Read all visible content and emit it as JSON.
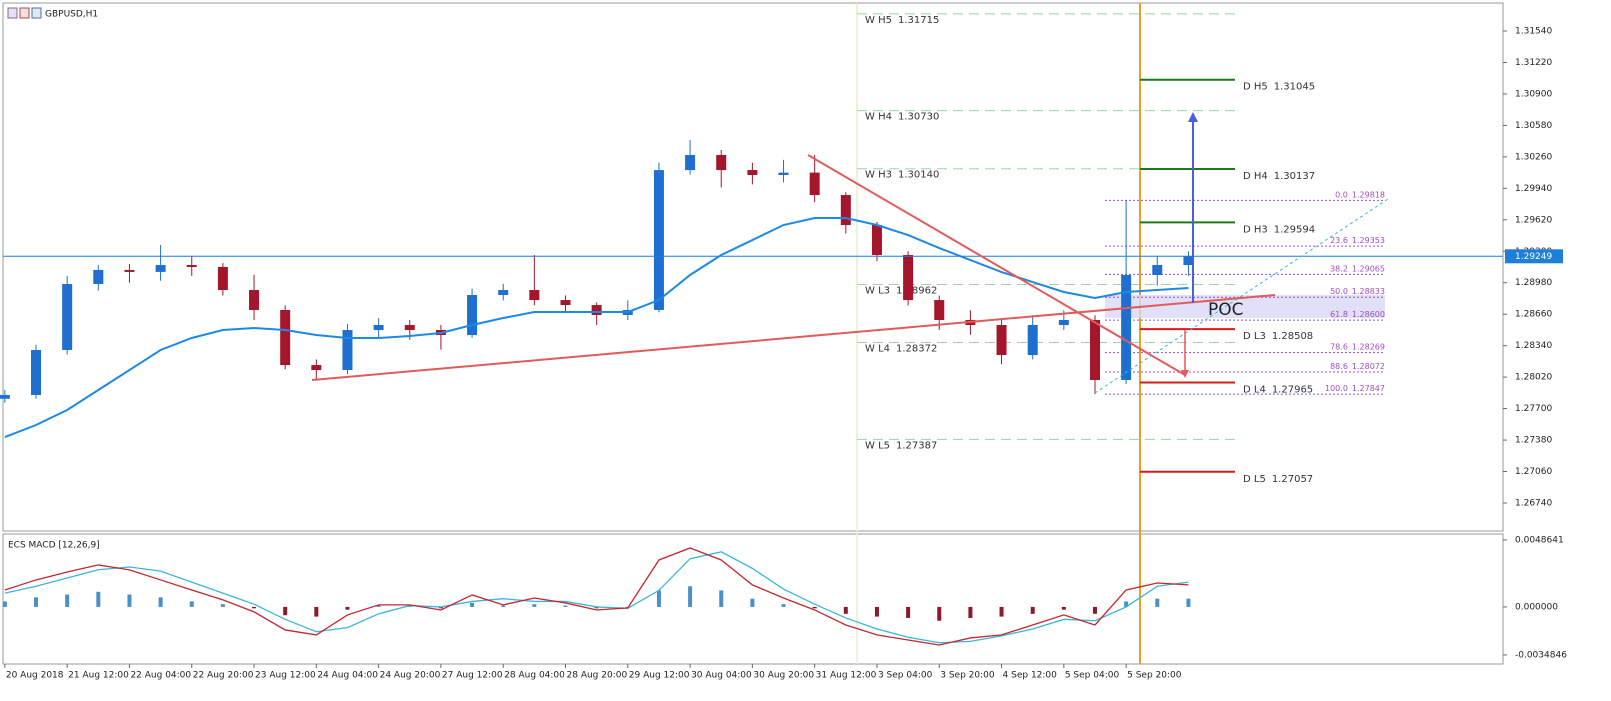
{
  "window_title": "GBPUSD,H1",
  "chart_data": [
    {
      "type": "candlestick",
      "x": [
        0,
        0.5,
        1,
        1.5,
        2,
        2.5,
        3,
        3.5,
        4,
        4.5,
        5,
        5.5,
        6,
        6.5,
        7,
        7.5,
        8,
        8.5,
        9,
        9.5,
        10,
        10.5,
        11,
        11.5,
        12,
        12.5,
        13,
        13.5,
        14,
        14.5,
        15,
        15.5,
        16,
        16.5,
        17,
        17.5,
        18,
        18.5,
        19
      ],
      "open": [
        1.278,
        1.27838,
        1.28296,
        1.28967,
        1.2911,
        1.2909,
        1.2916,
        1.2914,
        1.28906,
        1.28703,
        1.28143,
        1.28092,
        1.28499,
        1.2855,
        1.28499,
        1.28448,
        1.28855,
        1.28906,
        1.28804,
        1.28753,
        1.28652,
        1.28703,
        1.30126,
        1.30279,
        1.30126,
        1.30076,
        1.301,
        1.29872,
        1.29567,
        1.29262,
        1.28804,
        1.28601,
        1.2855,
        1.28245,
        1.2855,
        1.28601,
        1.27991,
        1.29059,
        1.2916
      ],
      "high": [
        1.2789,
        1.2835,
        1.2905,
        1.2916,
        1.2917,
        1.29364,
        1.2925,
        1.2918,
        1.2906,
        1.2875,
        1.282,
        1.2856,
        1.2862,
        1.286,
        1.2855,
        1.2892,
        1.2897,
        1.29262,
        1.2885,
        1.2878,
        1.288,
        1.302,
        1.30431,
        1.3033,
        1.302,
        1.3023,
        1.3028,
        1.299,
        1.296,
        1.293,
        1.2885,
        1.287,
        1.286,
        1.2865,
        1.287,
        1.2865,
        1.29818,
        1.2925,
        1.293
      ],
      "low": [
        1.2776,
        1.278,
        1.2825,
        1.289,
        1.2898,
        1.29,
        1.2905,
        1.2885,
        1.286,
        1.281,
        1.28,
        1.2805,
        1.2842,
        1.284,
        1.283,
        1.2842,
        1.288,
        1.2875,
        1.2868,
        1.2855,
        1.286,
        1.2868,
        1.3008,
        1.2995,
        1.2998,
        1.3,
        1.298,
        1.2948,
        1.292,
        1.2875,
        1.285,
        1.2845,
        1.2815,
        1.282,
        1.285,
        1.27847,
        1.2795,
        1.2895,
        1.2905
      ],
      "close": [
        1.27838,
        1.28296,
        1.28967,
        1.2911,
        1.2909,
        1.2916,
        1.2914,
        1.28906,
        1.28703,
        1.28143,
        1.28092,
        1.28499,
        1.2855,
        1.28499,
        1.28448,
        1.28855,
        1.28906,
        1.28804,
        1.28753,
        1.28652,
        1.28703,
        1.30126,
        1.30279,
        1.30126,
        1.30076,
        1.301,
        1.29872,
        1.29567,
        1.29262,
        1.28804,
        1.28601,
        1.2855,
        1.28245,
        1.2855,
        1.28601,
        1.27991,
        1.29059,
        1.2916,
        1.29249
      ],
      "up_color": "#1f6fd0",
      "down_color": "#a3162b",
      "moving_average": {
        "color": "#1e88e5",
        "values": [
          1.27411,
          1.27533,
          1.27686,
          1.27889,
          1.28092,
          1.28296,
          1.28418,
          1.28499,
          1.2852,
          1.28499,
          1.28448,
          1.28418,
          1.28418,
          1.28438,
          1.28469,
          1.2855,
          1.28621,
          1.28682,
          1.28682,
          1.28682,
          1.28682,
          1.28804,
          1.29059,
          1.29262,
          1.29414,
          1.29567,
          1.29638,
          1.29638,
          1.29567,
          1.29465,
          1.29333,
          1.29211,
          1.29089,
          1.28987,
          1.28886,
          1.28825,
          1.28886,
          1.28906,
          1.28926
        ]
      },
      "last_price": 1.29249,
      "xlim": [
        -0.03,
        24.05
      ],
      "ylim": [
        1.26455,
        1.31815
      ],
      "yticks": [
        {
          "value": 1.3154,
          "label": "1.31540"
        },
        {
          "value": 1.3122,
          "label": "1.31220"
        },
        {
          "value": 1.309,
          "label": "1.30900"
        },
        {
          "value": 1.3058,
          "label": "1.30580"
        },
        {
          "value": 1.3026,
          "label": "1.30260"
        },
        {
          "value": 1.2994,
          "label": "1.29940"
        },
        {
          "value": 1.2962,
          "label": "1.29620"
        },
        {
          "value": 1.293,
          "label": "1.29300"
        },
        {
          "value": 1.2898,
          "label": "1.28980"
        },
        {
          "value": 1.2866,
          "label": "1.28660"
        },
        {
          "value": 1.2834,
          "label": "1.28340"
        },
        {
          "value": 1.2802,
          "label": "1.28020"
        },
        {
          "value": 1.277,
          "label": "1.27700"
        },
        {
          "value": 1.2738,
          "label": "1.27380"
        },
        {
          "value": 1.2706,
          "label": "1.27060"
        },
        {
          "value": 1.2674,
          "label": "1.26740"
        }
      ],
      "xticks": [
        {
          "value": 0,
          "label": "20 Aug 2018"
        },
        {
          "value": 1,
          "label": "21 Aug 12:00"
        },
        {
          "value": 2,
          "label": "22 Aug 04:00"
        },
        {
          "value": 3,
          "label": "22 Aug 20:00"
        },
        {
          "value": 4,
          "label": "23 Aug 12:00"
        },
        {
          "value": 5,
          "label": "24 Aug 04:00"
        },
        {
          "value": 6,
          "label": "24 Aug 20:00"
        },
        {
          "value": 7,
          "label": "27 Aug 12:00"
        },
        {
          "value": 8,
          "label": "28 Aug 04:00"
        },
        {
          "value": 9,
          "label": "28 Aug 20:00"
        },
        {
          "value": 10,
          "label": "29 Aug 12:00"
        },
        {
          "value": 11,
          "label": "30 Aug 04:00"
        },
        {
          "value": 12,
          "label": "30 Aug 20:00"
        },
        {
          "value": 13,
          "label": "31 Aug 12:00"
        },
        {
          "value": 14,
          "label": "3 Sep 04:00"
        },
        {
          "value": 15,
          "label": "3 Sep 20:00"
        },
        {
          "value": 16,
          "label": "4 Sep 12:00"
        },
        {
          "value": 17,
          "label": "5 Sep 04:00"
        },
        {
          "value": 18,
          "label": "5 Sep 20:00"
        }
      ],
      "weekly_levels": {
        "color": "#9ed69e",
        "levels": [
          {
            "name": "W H5",
            "price": 1.31715
          },
          {
            "name": "W H4",
            "price": {
              "value": 1.3073,
              "label": "1.30730"
            }
          },
          {
            "name": "W H3",
            "price": {
              "value": 1.3014,
              "label": "1.30140"
            }
          },
          {
            "name": "W L3",
            "price": 1.28962
          },
          {
            "name": "W L4",
            "price": 1.28372
          },
          {
            "name": "W L5",
            "price": 1.27387
          }
        ]
      },
      "daily_levels": {
        "high_color": "#1a7a1a",
        "low_color": "#d91a1a",
        "levels": [
          {
            "name": "D H5",
            "price": 1.31045
          },
          {
            "name": "D H4",
            "price": 1.30137
          },
          {
            "name": "D H3",
            "price": 1.29594
          },
          {
            "name": "D L3",
            "price": 1.28508
          },
          {
            "name": "D L4",
            "price": 1.27965
          },
          {
            "name": "D L5",
            "price": 1.27057
          }
        ]
      },
      "fibonacci": {
        "color": "#a24fc2",
        "levels": [
          {
            "ratio": "0.0",
            "price": 1.29818
          },
          {
            "ratio": "23.6",
            "price": 1.29353
          },
          {
            "ratio": "38.2",
            "price": 1.29065
          },
          {
            "ratio": "50.0",
            "price": 1.28833
          },
          {
            "ratio": "61.8",
            "price": {
              "value": 1.286,
              "label": "1.28600"
            }
          },
          {
            "ratio": "78.6",
            "price": 1.28269
          },
          {
            "ratio": "88.6",
            "price": 1.28072
          },
          {
            "ratio": "100.0",
            "price": 1.27847
          }
        ]
      },
      "annotation": "POC"
    },
    {
      "type": "macd",
      "title": "ECS MACD [12,26,9]",
      "macd": {
        "color": "#c0282f",
        "values": [
          0.00123,
          0.00196,
          0.00254,
          0.00305,
          0.00269,
          0.00196,
          0.00123,
          0.00051,
          -0.00036,
          -0.00167,
          -0.00203,
          -0.00058,
          0.00015,
          0.00015,
          -0.00022,
          0.00087,
          0.00015,
          0.00065,
          0.00029,
          -0.00022,
          -7e-05,
          0.00341,
          0.00428,
          0.00341,
          0.0016,
          0.00065,
          -0.00022,
          -0.00131,
          -0.00203,
          -0.0024,
          -0.00276,
          -0.00225,
          -0.00203,
          -0.00131,
          -0.00058,
          -0.00131,
          0.00123,
          0.00174,
          0.0016
        ]
      },
      "signal": {
        "color": "#3cb6d8",
        "values": [
          0.001,
          0.0015,
          0.0021,
          0.0027,
          0.0029,
          0.0026,
          0.0018,
          0.001,
          0.0002,
          -0.0009,
          -0.0018,
          -0.0015,
          -0.0005,
          0.0001,
          0,
          0.0004,
          0.0006,
          0.0004,
          0.0004,
          0,
          -0.0001,
          0.0012,
          0.0035,
          0.004,
          0.0028,
          0.0013,
          0.0002,
          -0.0008,
          -0.0016,
          -0.0022,
          -0.0026,
          -0.0025,
          -0.0021,
          -0.0016,
          -0.0009,
          -0.001,
          0,
          0.0015,
          0.0018
        ]
      },
      "histogram": {
        "up_color": "#4a90c8",
        "down_color": "#8b1a2a",
        "values": [
          0.0004,
          0.0007,
          0.0009,
          0.0011,
          0.0009,
          0.0007,
          0.0004,
          0.0002,
          -0.0001,
          -0.0006,
          -0.0007,
          -0.0002,
          0.0001,
          0.0001,
          -0.0001,
          0.0003,
          0.0001,
          0.0002,
          0.0001,
          -0.0001,
          0,
          0.0012,
          0.0015,
          0.0012,
          0.0006,
          0.0002,
          -0.0001,
          -0.0005,
          -0.0007,
          -0.0008,
          -0.001,
          -0.0008,
          -0.0007,
          -0.0005,
          -0.0002,
          -0.0005,
          0.0004,
          0.0006,
          0.0006
        ]
      },
      "ylim": [
        -0.00407,
        0.00515
      ],
      "yticks": [
        0.0048641,
        {
          "value": 0,
          "label": "0.000000"
        },
        -0.0034846
      ]
    }
  ]
}
